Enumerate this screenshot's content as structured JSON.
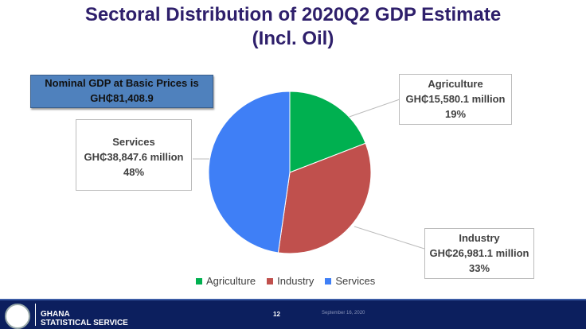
{
  "title_line1": "Sectoral Distribution of 2020Q2 GDP Estimate",
  "title_line2": "(Incl. Oil)",
  "gdp_box": {
    "line1": "Nominal GDP at Basic Prices is",
    "line2": "GH₵81,408.9"
  },
  "chart_data": {
    "type": "pie",
    "title": "Sectoral Distribution of 2020Q2 GDP Estimate (Incl. Oil)",
    "categories": [
      "Agriculture",
      "Industry",
      "Services"
    ],
    "values": [
      15580.1,
      26981.1,
      38847.6
    ],
    "percent": [
      19,
      33,
      48
    ],
    "value_labels": [
      "GH₵15,580.1 million",
      "GH₵26,981.1 million",
      "GH₵38,847.6 million"
    ],
    "percent_labels": [
      "19%",
      "33%",
      "48%"
    ],
    "colors": [
      "#00b050",
      "#c0504d",
      "#3f7ff6"
    ],
    "legend_position": "bottom"
  },
  "footer": {
    "org_line1": "GHANA",
    "org_line2": "STATISTICAL SERVICE",
    "page": "12",
    "date": "September 16, 2020"
  }
}
